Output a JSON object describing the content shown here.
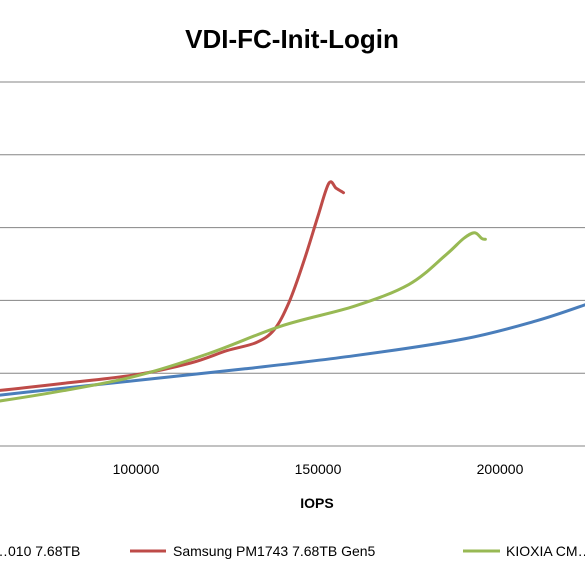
{
  "chart_data": {
    "type": "line",
    "title": "VDI-FC-Init-Login",
    "xlabel": "IOPS",
    "ylabel": "",
    "x_ticks": [
      100000,
      150000,
      200000
    ],
    "x_tick_labels": [
      "100000",
      "150000",
      "200000"
    ],
    "grid": true,
    "legend_position": "bottom",
    "series": [
      {
        "name": "…010 7.68TB",
        "color": "#4A7EBB",
        "x": [
          40000,
          70000,
          100000,
          130000,
          160000,
          190000,
          210000,
          224000
        ],
        "y": [
          0.57,
          0.74,
          0.9,
          1.06,
          1.24,
          1.47,
          1.72,
          1.95
        ]
      },
      {
        "name": "Samsung PM1743 7.68TB Gen5",
        "color": "#BE4B48",
        "x": [
          40000,
          60000,
          80000,
          100000,
          115000,
          125000,
          133000,
          138000,
          142000,
          146000,
          150000,
          153000,
          155000,
          157000
        ],
        "y": [
          0.66,
          0.75,
          0.86,
          0.98,
          1.14,
          1.31,
          1.42,
          1.6,
          1.97,
          2.52,
          3.16,
          3.61,
          3.54,
          3.48
        ]
      },
      {
        "name": "KIOXIA CM…",
        "color": "#98B954",
        "x": [
          40000,
          60000,
          80000,
          100000,
          120000,
          140000,
          160000,
          175000,
          185000,
          190000,
          193000,
          195000,
          196000
        ],
        "y": [
          0.48,
          0.6,
          0.76,
          0.96,
          1.27,
          1.65,
          1.92,
          2.22,
          2.62,
          2.85,
          2.93,
          2.85,
          2.84
        ]
      }
    ]
  }
}
